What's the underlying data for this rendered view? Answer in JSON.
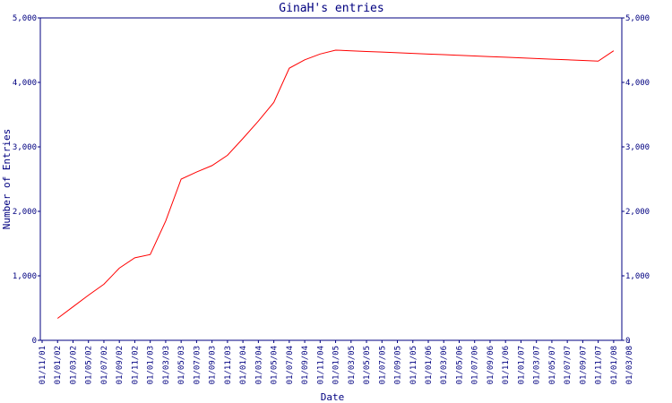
{
  "chart_data": {
    "type": "line",
    "title": "GinaH's entries",
    "ylabel": "Number of Entries",
    "xlabel": "Date",
    "categories": [
      "01/11/01",
      "01/01/02",
      "01/03/02",
      "01/05/02",
      "01/07/02",
      "01/09/02",
      "01/11/02",
      "01/01/03",
      "01/03/03",
      "01/05/03",
      "01/07/03",
      "01/09/03",
      "01/11/03",
      "01/01/04",
      "01/03/04",
      "01/05/04",
      "01/07/04",
      "01/09/04",
      "01/11/04",
      "01/01/05",
      "01/03/05",
      "01/05/05",
      "01/07/05",
      "01/09/05",
      "01/11/05",
      "01/01/06",
      "01/03/06",
      "01/05/06",
      "01/07/06",
      "01/09/06",
      "01/11/06",
      "01/01/07",
      "01/03/07",
      "01/05/07",
      "01/07/07",
      "01/09/07",
      "01/11/07",
      "01/01/08",
      "01/03/08"
    ],
    "series": [
      {
        "name": "entries",
        "color": "#ff0000",
        "values": [
          null,
          340,
          520,
          700,
          870,
          1120,
          1280,
          1330,
          1850,
          2500,
          2610,
          2710,
          2870,
          3130,
          3400,
          3690,
          4220,
          4350,
          4440,
          4500,
          4490,
          4480,
          4470,
          4460,
          4450,
          4440,
          4430,
          4420,
          4410,
          4400,
          4390,
          4380,
          4370,
          4360,
          4350,
          4340,
          4330,
          4490,
          null
        ]
      }
    ],
    "ylim": [
      0,
      5000
    ],
    "yticks": [
      0,
      {
        "value": 1000,
        "label": "1,000"
      },
      {
        "value": 2000,
        "label": "2,000"
      },
      {
        "value": 3000,
        "label": "3,000"
      },
      {
        "value": 4000,
        "label": "4,000"
      },
      {
        "value": 5000,
        "label": "5,000"
      }
    ]
  }
}
